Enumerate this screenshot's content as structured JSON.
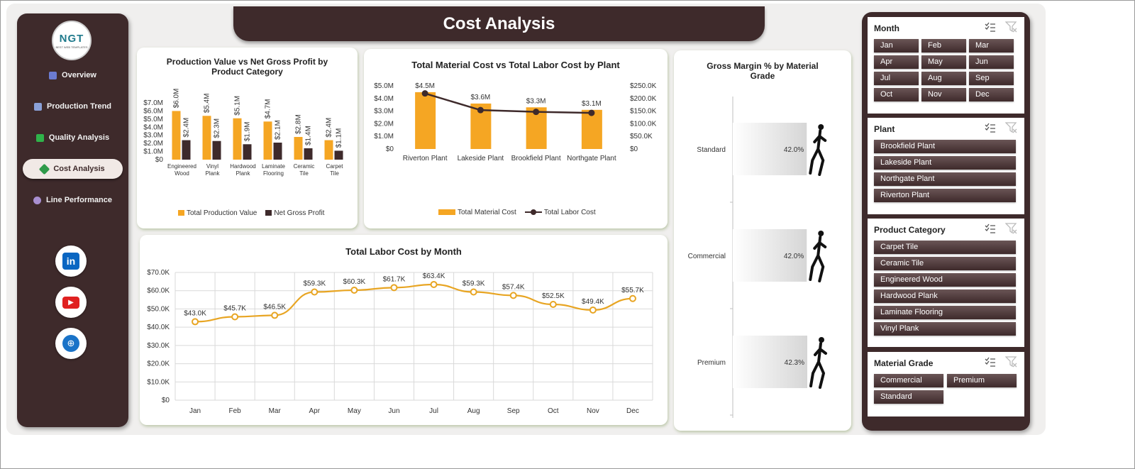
{
  "title": "Cost Analysis",
  "logo": {
    "text": "NGT",
    "sub": "BEST WEB TEMPLATES"
  },
  "nav": [
    {
      "label": "Overview",
      "icon": "bar-chart-icon",
      "color": "#6b7bd1"
    },
    {
      "label": "Production Trend",
      "icon": "line-chart-icon",
      "color": "#8aa0d8"
    },
    {
      "label": "Quality Analysis",
      "icon": "check-box-icon",
      "color": "#2fb34a"
    },
    {
      "label": "Cost Analysis",
      "icon": "money-icon",
      "color": "#2f9a4a"
    },
    {
      "label": "Line Performance",
      "icon": "gear-icon",
      "color": "#a88fd0"
    }
  ],
  "social": [
    {
      "name": "linkedin-icon",
      "glyph": "in",
      "color": "#0a66c2"
    },
    {
      "name": "youtube-icon",
      "glyph": "▶",
      "color": "#e02020"
    },
    {
      "name": "globe-icon",
      "glyph": "🌐",
      "color": "#1a73c8"
    }
  ],
  "chart_data": [
    {
      "type": "bar",
      "title": "Production Value vs Net Gross Profit by Product Category",
      "categories": [
        "Engineered Wood",
        "Vinyl Plank",
        "Hardwood Plank",
        "Laminate Flooring",
        "Ceramic Tile",
        "Carpet Tile"
      ],
      "series": [
        {
          "name": "Total Production Value",
          "values": [
            6.0,
            5.4,
            5.1,
            4.7,
            2.8,
            2.4
          ],
          "labels": [
            "$6.0M",
            "$5.4M",
            "$5.1M",
            "$4.7M",
            "$2.8M",
            "$2.4M"
          ],
          "color": "#f5a623"
        },
        {
          "name": "Net Gross Profit",
          "values": [
            2.4,
            2.3,
            1.9,
            2.1,
            1.4,
            1.1
          ],
          "labels": [
            "$2.4M",
            "$2.3M",
            "$1.9M",
            "$2.1M",
            "$1.4M",
            "$1.1M"
          ],
          "color": "#3e2a2b"
        }
      ],
      "yticks": [
        "$0",
        "$1.0M",
        "$2.0M",
        "$3.0M",
        "$4.0M",
        "$5.0M",
        "$6.0M",
        "$7.0M"
      ],
      "ylim": [
        0,
        7
      ]
    },
    {
      "type": "bar+line",
      "title": "Total Material Cost vs Total Labor Cost by Plant",
      "categories": [
        "Riverton Plant",
        "Lakeside Plant",
        "Brookfield Plant",
        "Northgate Plant"
      ],
      "series": [
        {
          "name": "Total Material Cost",
          "values": [
            4.5,
            3.6,
            3.3,
            3.1
          ],
          "labels": [
            "$4.5M",
            "$3.6M",
            "$3.3M",
            "$3.1M"
          ],
          "color": "#f5a623",
          "axis": "left"
        },
        {
          "name": "Total Labor Cost",
          "values": [
            220,
            154,
            147,
            143
          ],
          "color": "#3e2a2b",
          "axis": "right"
        }
      ],
      "yticks_left": [
        "$0",
        "$1.0M",
        "$2.0M",
        "$3.0M",
        "$4.0M",
        "$5.0M"
      ],
      "yticks_right": [
        "$0",
        "$50.0K",
        "$100.0K",
        "$150.0K",
        "$200.0K",
        "$250.0K"
      ],
      "ylim_left": [
        0,
        5
      ],
      "ylim_right": [
        0,
        250
      ]
    },
    {
      "type": "line",
      "title": "Total Labor Cost by Month",
      "categories": [
        "Jan",
        "Feb",
        "Mar",
        "Apr",
        "May",
        "Jun",
        "Jul",
        "Aug",
        "Sep",
        "Oct",
        "Nov",
        "Dec"
      ],
      "values": [
        43.0,
        45.7,
        46.5,
        59.3,
        60.3,
        61.7,
        63.4,
        59.3,
        57.4,
        52.5,
        49.4,
        55.7
      ],
      "labels": [
        "$43.0K",
        "$45.7K",
        "$46.5K",
        "$59.3K",
        "$60.3K",
        "$61.7K",
        "$63.4K",
        "$59.3K",
        "$57.4K",
        "$52.5K",
        "$49.4K",
        "$55.7K"
      ],
      "yticks": [
        "$0",
        "$10.0K",
        "$20.0K",
        "$30.0K",
        "$40.0K",
        "$50.0K",
        "$60.0K",
        "$70.0K"
      ],
      "ylim": [
        0,
        70
      ],
      "color": "#e8a523",
      "grid": true
    },
    {
      "type": "bar",
      "orientation": "horizontal",
      "title": "Gross Margin % by Material Grade",
      "categories": [
        "Standard",
        "Commercial",
        "Premium"
      ],
      "values": [
        42.0,
        42.0,
        42.3
      ],
      "labels": [
        "42.0%",
        "42.0%",
        "42.3%"
      ]
    }
  ],
  "slicers": [
    {
      "title": "Month",
      "items": [
        "Jan",
        "Feb",
        "Mar",
        "Apr",
        "May",
        "Jun",
        "Jul",
        "Aug",
        "Sep",
        "Oct",
        "Nov",
        "Dec"
      ],
      "cols": 3
    },
    {
      "title": "Plant",
      "items": [
        "Brookfield Plant",
        "Lakeside Plant",
        "Northgate Plant",
        "Riverton Plant"
      ],
      "cols": 1
    },
    {
      "title": "Product Category",
      "items": [
        "Carpet Tile",
        "Ceramic Tile",
        "Engineered Wood",
        "Hardwood Plank",
        "Laminate Flooring",
        "Vinyl Plank"
      ],
      "cols": 1
    },
    {
      "title": "Material Grade",
      "items": [
        "Commercial",
        "Premium",
        "Standard"
      ],
      "cols": 2
    }
  ]
}
